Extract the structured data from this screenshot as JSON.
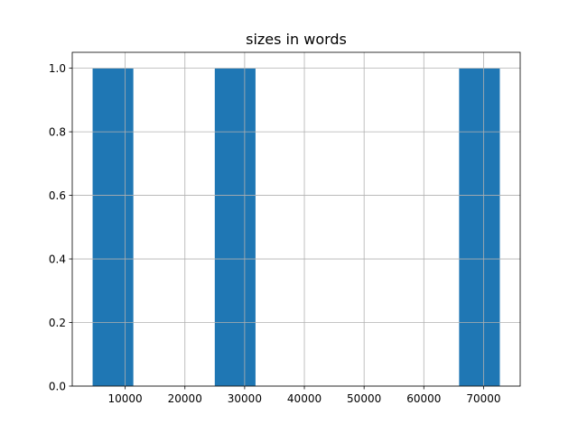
{
  "chart_data": {
    "type": "bar",
    "title": "sizes in words",
    "xlabel": "",
    "ylabel": "",
    "bin_edges": [
      4545,
      11364,
      18182,
      25000,
      31818,
      38636,
      45455,
      52273,
      59091,
      65909,
      72727
    ],
    "counts": [
      1,
      0,
      0,
      1,
      0,
      0,
      0,
      0,
      0,
      1
    ],
    "xlim": [
      1136,
      76136
    ],
    "ylim": [
      0,
      1.05
    ],
    "xticks": [
      10000,
      20000,
      30000,
      40000,
      50000,
      60000,
      70000
    ],
    "xtick_labels": [
      "10000",
      "20000",
      "30000",
      "40000",
      "50000",
      "60000",
      "70000"
    ],
    "yticks": [
      0,
      0.2,
      0.4,
      0.6,
      0.8,
      1.0
    ],
    "ytick_labels": [
      "0.0",
      "0.2",
      "0.4",
      "0.6",
      "0.8",
      "1.0"
    ],
    "grid": true,
    "bar_color": "#1f77b4"
  }
}
